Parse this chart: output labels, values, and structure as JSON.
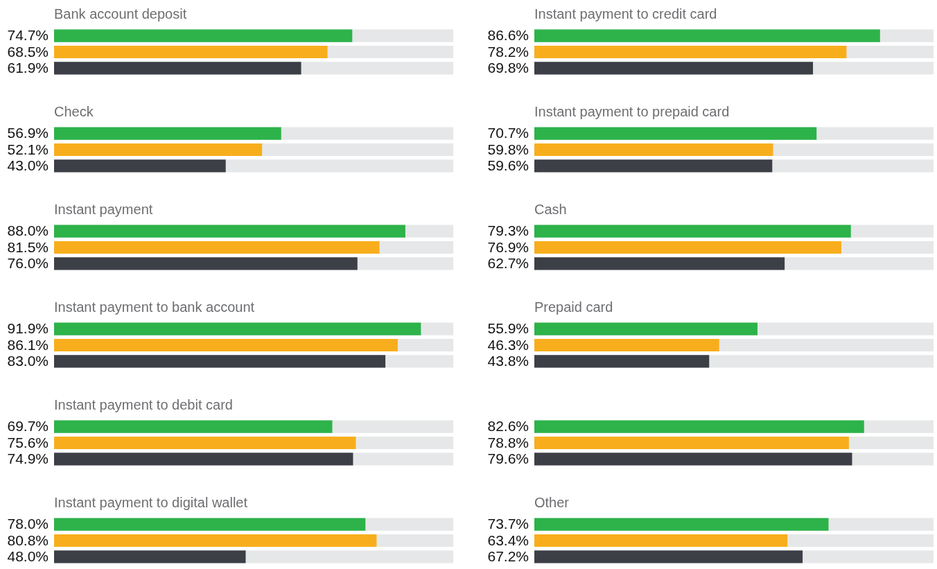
{
  "chart_data": [
    {
      "type": "bar",
      "orientation": "horizontal",
      "title": "Bank account deposit",
      "categories": [
        null,
        null,
        null
      ],
      "values": [
        74.7,
        68.5,
        61.9
      ],
      "value_labels": [
        "74.7%",
        "68.5%",
        "61.9%"
      ],
      "colors": [
        "#2db34a",
        "#f8ae1c",
        "#3d3f47"
      ],
      "xlim": [
        0,
        100
      ],
      "tick_labels": false
    },
    {
      "type": "bar",
      "orientation": "horizontal",
      "title": "Check",
      "categories": [
        null,
        null,
        null
      ],
      "values": [
        56.9,
        52.1,
        43.0
      ],
      "value_labels": [
        "56.9%",
        "52.1%",
        "43.0%"
      ],
      "colors": [
        "#2db34a",
        "#f8ae1c",
        "#3d3f47"
      ],
      "xlim": [
        0,
        100
      ],
      "tick_labels": false
    },
    {
      "type": "bar",
      "orientation": "horizontal",
      "title": "Instant payment",
      "categories": [
        null,
        null,
        null
      ],
      "values": [
        88.0,
        81.5,
        76.0
      ],
      "value_labels": [
        "88.0%",
        "81.5%",
        "76.0%"
      ],
      "colors": [
        "#2db34a",
        "#f8ae1c",
        "#3d3f47"
      ],
      "xlim": [
        0,
        100
      ],
      "tick_labels": false
    },
    {
      "type": "bar",
      "orientation": "horizontal",
      "title": "Instant payment to bank account",
      "categories": [
        null,
        null,
        null
      ],
      "values": [
        91.9,
        86.1,
        83.0
      ],
      "value_labels": [
        "91.9%",
        "86.1%",
        "83.0%"
      ],
      "colors": [
        "#2db34a",
        "#f8ae1c",
        "#3d3f47"
      ],
      "xlim": [
        0,
        100
      ],
      "tick_labels": false
    },
    {
      "type": "bar",
      "orientation": "horizontal",
      "title": "Instant payment to debit card",
      "categories": [
        null,
        null,
        null
      ],
      "values": [
        69.7,
        75.6,
        74.9
      ],
      "value_labels": [
        "69.7%",
        "75.6%",
        "74.9%"
      ],
      "colors": [
        "#2db34a",
        "#f8ae1c",
        "#3d3f47"
      ],
      "xlim": [
        0,
        100
      ],
      "tick_labels": false
    },
    {
      "type": "bar",
      "orientation": "horizontal",
      "title": "Instant payment to digital wallet",
      "categories": [
        null,
        null,
        null
      ],
      "values": [
        78.0,
        80.8,
        48.0
      ],
      "value_labels": [
        "78.0%",
        "80.8%",
        "48.0%"
      ],
      "colors": [
        "#2db34a",
        "#f8ae1c",
        "#3d3f47"
      ],
      "xlim": [
        0,
        100
      ],
      "tick_labels": false
    },
    {
      "type": "bar",
      "orientation": "horizontal",
      "title": "Instant payment to credit card",
      "categories": [
        null,
        null,
        null
      ],
      "values": [
        86.6,
        78.2,
        69.8
      ],
      "value_labels": [
        "86.6%",
        "78.2%",
        "69.8%"
      ],
      "colors": [
        "#2db34a",
        "#f8ae1c",
        "#3d3f47"
      ],
      "xlim": [
        0,
        100
      ],
      "tick_labels": false
    },
    {
      "type": "bar",
      "orientation": "horizontal",
      "title": "Instant payment to prepaid card",
      "categories": [
        null,
        null,
        null
      ],
      "values": [
        70.7,
        59.8,
        59.6
      ],
      "value_labels": [
        "70.7%",
        "59.8%",
        "59.6%"
      ],
      "colors": [
        "#2db34a",
        "#f8ae1c",
        "#3d3f47"
      ],
      "xlim": [
        0,
        100
      ],
      "tick_labels": false
    },
    {
      "type": "bar",
      "orientation": "horizontal",
      "title": "Cash",
      "categories": [
        null,
        null,
        null
      ],
      "values": [
        79.3,
        76.9,
        62.7
      ],
      "value_labels": [
        "79.3%",
        "76.9%",
        "62.7%"
      ],
      "colors": [
        "#2db34a",
        "#f8ae1c",
        "#3d3f47"
      ],
      "xlim": [
        0,
        100
      ],
      "tick_labels": false
    },
    {
      "type": "bar",
      "orientation": "horizontal",
      "title": "Prepaid card",
      "categories": [
        null,
        null,
        null
      ],
      "values": [
        55.9,
        46.3,
        43.8
      ],
      "value_labels": [
        "55.9%",
        "46.3%",
        "43.8%"
      ],
      "colors": [
        "#2db34a",
        "#f8ae1c",
        "#3d3f47"
      ],
      "xlim": [
        0,
        100
      ],
      "tick_labels": false
    },
    {
      "type": "bar",
      "orientation": "horizontal",
      "categories": [
        null,
        null,
        null
      ],
      "values": [
        82.6,
        78.8,
        79.6
      ],
      "value_labels": [
        "82.6%",
        "78.8%",
        "79.6%"
      ],
      "colors": [
        "#2db34a",
        "#f8ae1c",
        "#3d3f47"
      ],
      "xlim": [
        0,
        100
      ],
      "tick_labels": false
    },
    {
      "type": "bar",
      "orientation": "horizontal",
      "title": "Other",
      "categories": [
        null,
        null,
        null
      ],
      "values": [
        73.7,
        63.4,
        67.2
      ],
      "value_labels": [
        "73.7%",
        "63.4%",
        "67.2%"
      ],
      "colors": [
        "#2db34a",
        "#f8ae1c",
        "#3d3f47"
      ],
      "xlim": [
        0,
        100
      ],
      "tick_labels": false
    }
  ]
}
